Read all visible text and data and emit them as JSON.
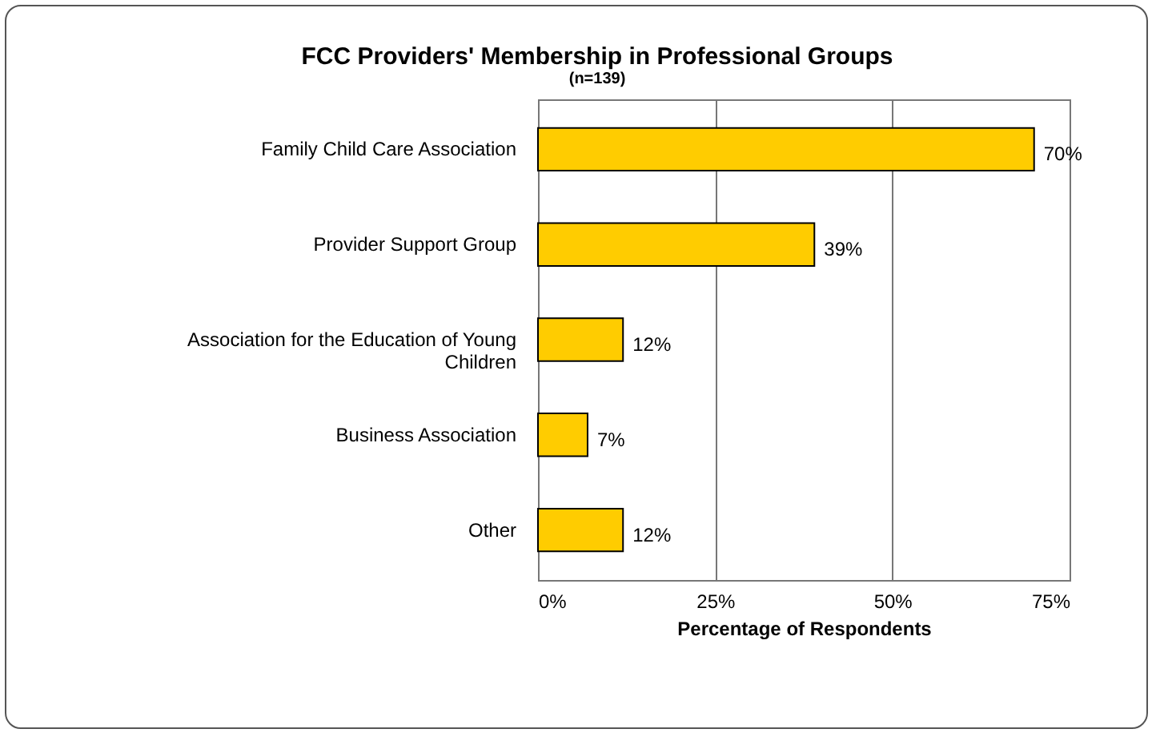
{
  "chart_data": {
    "type": "bar",
    "orientation": "horizontal",
    "title": "FCC Providers' Membership in Professional Groups",
    "subtitle": "(n=139)",
    "xlabel": "Percentage of Respondents",
    "categories": [
      "Family Child Care Association",
      "Provider Support Group",
      "Association for the Education of Young Children",
      "Business Association",
      "Other"
    ],
    "values": [
      70,
      39,
      12,
      7,
      12
    ],
    "value_labels": [
      "70%",
      "39%",
      "12%",
      "7%",
      "12%"
    ],
    "color": "#ffcc00",
    "xlim": [
      0,
      75
    ],
    "xticks": [
      {
        "value": 0,
        "label": "0%"
      },
      {
        "value": 25,
        "label": "25%"
      },
      {
        "value": 50,
        "label": "50%"
      },
      {
        "value": 75,
        "label": "75%"
      }
    ],
    "grid": "x"
  }
}
